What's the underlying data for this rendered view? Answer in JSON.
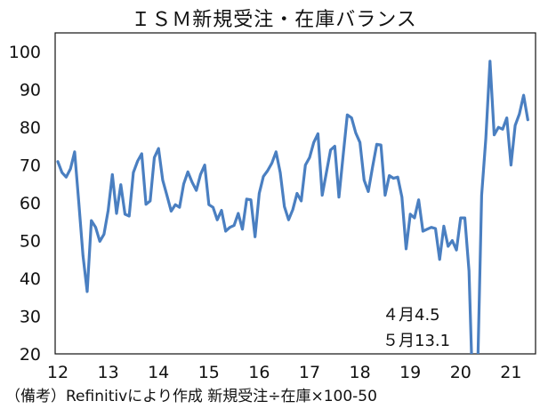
{
  "chart_data": {
    "type": "line",
    "title": "ＩＳＭ新規受注・在庫バランス",
    "xlabel": "",
    "ylabel": "",
    "ylim": [
      20,
      105
    ],
    "yticks": [
      20,
      30,
      40,
      50,
      60,
      70,
      80,
      90,
      100
    ],
    "xticks": [
      "12",
      "13",
      "14",
      "15",
      "16",
      "17",
      "18",
      "19",
      "20",
      "21"
    ],
    "grid": false,
    "line_color": "#4a7fc1",
    "annotations": [
      "４月4.5",
      "５月13.1"
    ],
    "footnote": "（備考）Refinitivにより作成 新規受注÷在庫×100-50",
    "x_start": "2012-01",
    "series": [
      {
        "values": [
          70.9,
          68.0,
          66.8,
          69.0,
          73.5,
          60.0,
          46.0,
          36.5,
          55.3,
          53.5,
          49.8,
          51.7,
          58.0,
          67.5,
          57.2,
          64.8,
          57.0,
          56.5,
          68.0,
          71.0,
          73.0,
          59.6,
          60.5,
          72.0,
          74.4,
          66.0,
          62.0,
          57.8,
          59.5,
          58.8,
          65.0,
          68.2,
          65.5,
          63.3,
          67.5,
          70.0,
          59.5,
          58.8,
          55.5,
          58.0,
          52.5,
          53.5,
          54.0,
          57.2,
          53.0,
          61.0,
          60.8,
          51.0,
          62.5,
          67.0,
          68.5,
          70.5,
          73.5,
          68.0,
          59.0,
          55.5,
          58.2,
          62.5,
          60.5,
          70.0,
          72.0,
          76.0,
          78.3,
          62.0,
          68.0,
          74.0,
          75.0,
          61.5,
          72.5,
          83.3,
          82.5,
          78.5,
          76.0,
          66.0,
          63.0,
          69.5,
          75.5,
          75.3,
          62.0,
          67.2,
          66.5,
          66.8,
          61.5,
          47.8,
          57.0,
          56.0,
          60.8,
          52.5,
          53.0,
          53.5,
          53.2,
          45.0,
          53.8,
          48.5,
          50.0,
          47.5,
          56.0,
          56.0,
          42.0,
          4.5,
          13.1,
          62.0,
          77.0,
          97.5,
          78.0,
          80.0,
          79.5,
          82.5,
          70.0,
          80.5,
          83.5,
          88.5,
          82.0
        ]
      }
    ]
  }
}
